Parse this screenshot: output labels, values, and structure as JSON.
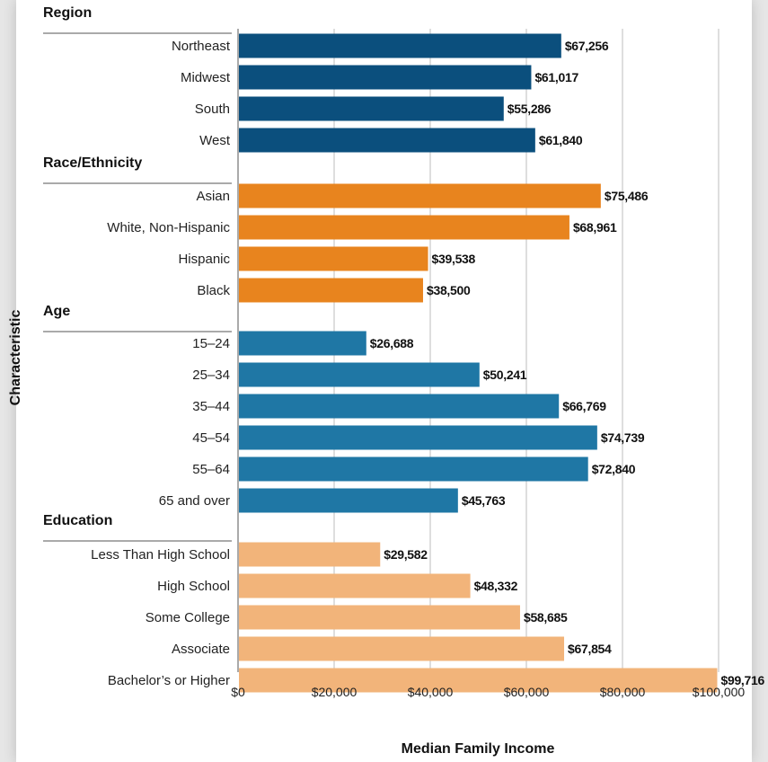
{
  "colors": {
    "Region": "#0b4f7d",
    "Race/Ethnicity": "#e8841e",
    "Age": "#1f77a5",
    "Education": "#f2b47a",
    "grid": "#bdbdbd",
    "group_rule": "#555555"
  },
  "chart_data": {
    "type": "bar",
    "orientation": "horizontal",
    "title": "",
    "xlabel": "Median Family Income",
    "ylabel": "Characteristic",
    "xlim": [
      0,
      100000
    ],
    "xticks": [
      0,
      20000,
      40000,
      60000,
      80000,
      100000
    ],
    "xtick_labels": [
      "$0",
      "$20,000",
      "$40,000",
      "$60,000",
      "$80,000",
      "$100,000"
    ],
    "grid": "vertical",
    "groups": [
      {
        "name": "Region",
        "categories": [
          "Northeast",
          "Midwest",
          "South",
          "West"
        ],
        "values": [
          67256,
          61017,
          55286,
          61840
        ],
        "labels": [
          "$67,256",
          "$61,017",
          "$55,286",
          "$61,840"
        ]
      },
      {
        "name": "Race/Ethnicity",
        "categories": [
          "Asian",
          "White, Non-Hispanic",
          "Hispanic",
          "Black"
        ],
        "values": [
          75486,
          68961,
          39538,
          38500
        ],
        "labels": [
          "$75,486",
          "$68,961",
          "$39,538",
          "$38,500"
        ]
      },
      {
        "name": "Age",
        "categories": [
          "15–24",
          "25–34",
          "35–44",
          "45–54",
          "55–64",
          "65 and over"
        ],
        "values": [
          26688,
          50241,
          66769,
          74739,
          72840,
          45763
        ],
        "labels": [
          "$26,688",
          "$50,241",
          "$66,769",
          "$74,739",
          "$72,840",
          "$45,763"
        ]
      },
      {
        "name": "Education",
        "categories": [
          "Less Than High School",
          "High School",
          "Some College",
          "Associate",
          "Bachelor’s or Higher"
        ],
        "values": [
          29582,
          48332,
          58685,
          67854,
          99716
        ],
        "labels": [
          "$29,582",
          "$48,332",
          "$58,685",
          "$67,854",
          "$99,716"
        ]
      }
    ]
  }
}
